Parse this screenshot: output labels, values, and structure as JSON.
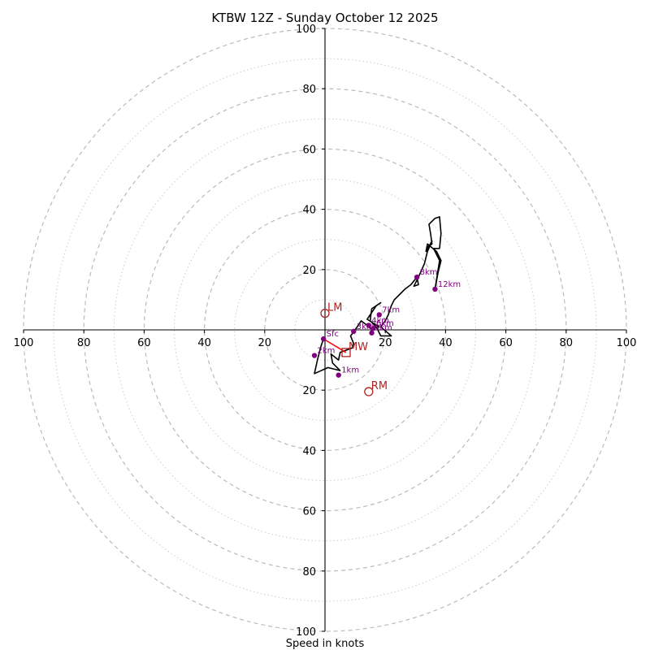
{
  "chart_data": {
    "type": "hodograph",
    "title": "KTBW 12Z - Sunday October 12 2025",
    "xlabel": "Speed in knots",
    "range": [
      -100,
      100
    ],
    "ring_major_interval": 20,
    "ring_minor_interval": 10,
    "tick_labels": {
      "x": [
        {
          "value": -100,
          "label": "100"
        },
        {
          "value": -80,
          "label": "80"
        },
        {
          "value": -60,
          "label": "60"
        },
        {
          "value": -40,
          "label": "40"
        },
        {
          "value": -20,
          "label": "20"
        },
        {
          "value": 20,
          "label": "20"
        },
        {
          "value": 40,
          "label": "40"
        },
        {
          "value": 60,
          "label": "60"
        },
        {
          "value": 80,
          "label": "80"
        },
        {
          "value": 100,
          "label": "100"
        }
      ],
      "y": [
        {
          "value": 100,
          "label": "100"
        },
        {
          "value": 80,
          "label": "80"
        },
        {
          "value": 60,
          "label": "60"
        },
        {
          "value": 40,
          "label": "40"
        },
        {
          "value": 20,
          "label": "20"
        },
        {
          "value": -20,
          "label": "20"
        },
        {
          "value": -40,
          "label": "40"
        },
        {
          "value": -60,
          "label": "60"
        },
        {
          "value": -80,
          "label": "80"
        },
        {
          "value": -100,
          "label": "100"
        }
      ]
    },
    "hodograph_trace": [
      [
        -0.5,
        -3
      ],
      [
        -1.5,
        -6
      ],
      [
        -2.5,
        -10
      ],
      [
        -3.5,
        -14.5
      ],
      [
        1,
        -12.5
      ],
      [
        5,
        -13.5
      ],
      [
        2.5,
        -11
      ],
      [
        2,
        -8
      ],
      [
        4.5,
        -10
      ],
      [
        5,
        -7.5
      ],
      [
        9,
        -6
      ],
      [
        9.5,
        -4.5
      ],
      [
        8.5,
        -2
      ],
      [
        10,
        0
      ],
      [
        12,
        3
      ],
      [
        14,
        1.5
      ],
      [
        15,
        0.5
      ],
      [
        18,
        1
      ],
      [
        14,
        3.5
      ],
      [
        17,
        8
      ],
      [
        18.5,
        9
      ],
      [
        15.5,
        7
      ],
      [
        15,
        3
      ],
      [
        17,
        1
      ],
      [
        18.5,
        -2
      ],
      [
        22,
        -2
      ],
      [
        18.5,
        1
      ],
      [
        20,
        3
      ],
      [
        21,
        5
      ],
      [
        22,
        8
      ],
      [
        23,
        10
      ],
      [
        25,
        12
      ],
      [
        26.5,
        13.5
      ],
      [
        28.5,
        15
      ],
      [
        30.5,
        17.5
      ],
      [
        31,
        15
      ],
      [
        29.5,
        14.5
      ],
      [
        31,
        17.5
      ],
      [
        33,
        22
      ],
      [
        34,
        26
      ],
      [
        35.5,
        29.5
      ],
      [
        33.5,
        26
      ],
      [
        34,
        28.5
      ],
      [
        37,
        26
      ],
      [
        38.5,
        23
      ],
      [
        37.5,
        19
      ],
      [
        36.5,
        13.5
      ],
      [
        38,
        23
      ],
      [
        36,
        27
      ],
      [
        38,
        27
      ],
      [
        38.5,
        32
      ],
      [
        38,
        37.5
      ],
      [
        36.5,
        37
      ],
      [
        34.5,
        35
      ],
      [
        35,
        32
      ],
      [
        35.5,
        28.5
      ],
      [
        34,
        27.5
      ]
    ],
    "height_markers": [
      {
        "u": -0.5,
        "v": -3,
        "label": "Sfc"
      },
      {
        "u": 4.5,
        "v": -15,
        "label": "1km"
      },
      {
        "u": -3.5,
        "v": -8.5,
        "label": "2km"
      },
      {
        "u": 9.5,
        "v": -0.5,
        "label": "3km"
      },
      {
        "u": 14.5,
        "v": 1.5,
        "label": "4km"
      },
      {
        "u": 15.5,
        "v": -1,
        "label": "5km"
      },
      {
        "u": 16,
        "v": 0.5,
        "label": "6km"
      },
      {
        "u": 18,
        "v": 5,
        "label": "7km"
      },
      {
        "u": 30.5,
        "v": 17.5,
        "label": "8km"
      },
      {
        "u": 36.5,
        "v": 13.5,
        "label": "12km"
      }
    ],
    "storm_motion": [
      {
        "id": "LM",
        "label": "LM",
        "u": 0,
        "v": 5.5,
        "marker": "circle"
      },
      {
        "id": "MW",
        "label": "MW",
        "u": 7,
        "v": -7.5,
        "marker": "square"
      },
      {
        "id": "RM",
        "label": "RM",
        "u": 14.5,
        "v": -20.5,
        "marker": "circle"
      }
    ],
    "shear_vector": {
      "from": [
        -0.5,
        -3
      ],
      "to": [
        7,
        -7.5
      ]
    },
    "colors": {
      "trace": "#000000",
      "height_markers": "#800080",
      "storm_motion": "#b22222",
      "shear_vector": "#ff0000",
      "rings": "#bbbbbb"
    }
  }
}
